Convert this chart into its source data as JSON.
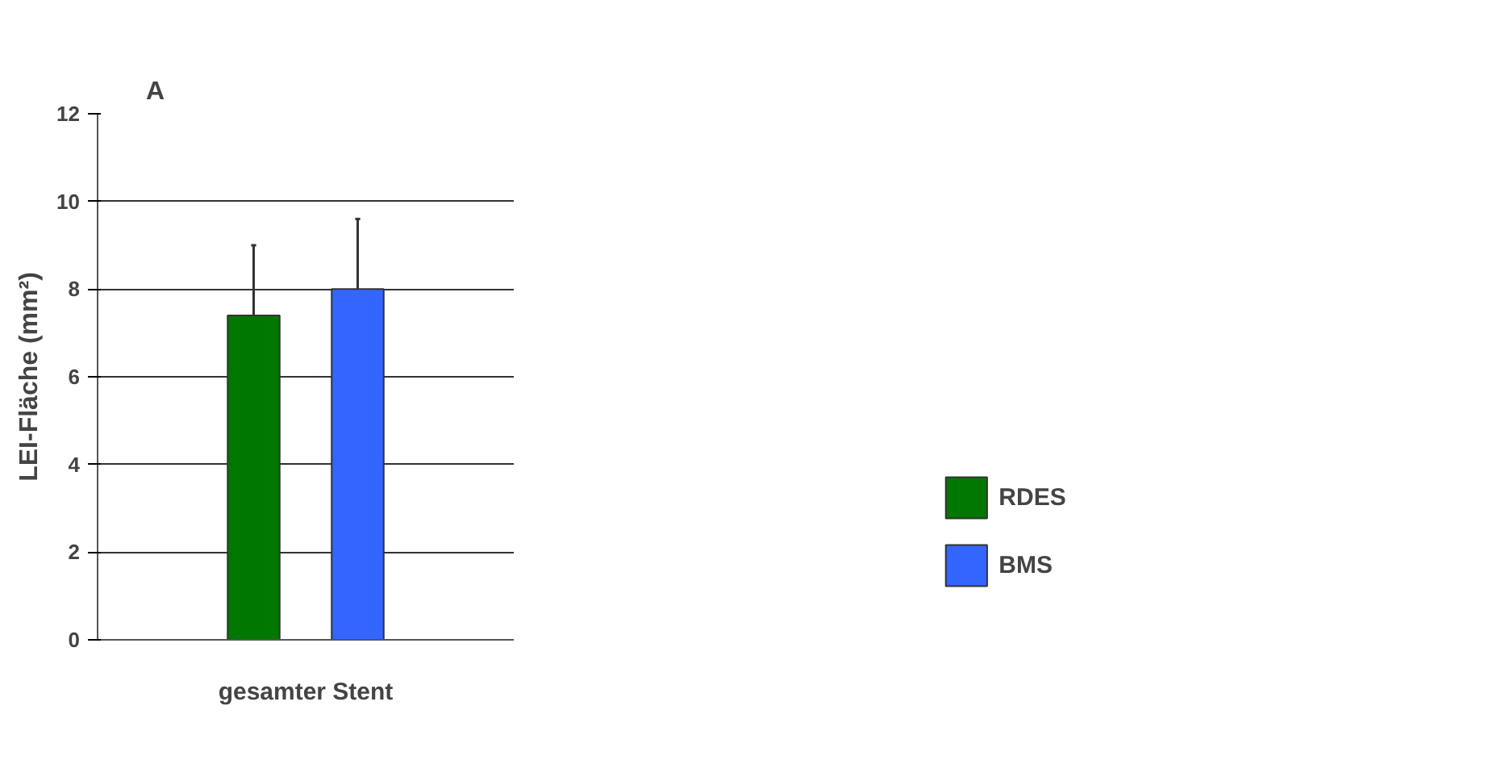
{
  "chart_data": {
    "type": "bar",
    "title": "A",
    "ylabel": "LEI-Fläche (mm²)",
    "categories": [
      "gesamter Stent"
    ],
    "series": [
      {
        "name": "RDES",
        "color": "#007800",
        "values": [
          7.4
        ],
        "errors": [
          [
            7.4,
            9.0
          ]
        ]
      },
      {
        "name": "BMS",
        "color": "#3366ff",
        "values": [
          8.0
        ],
        "errors": [
          [
            8.0,
            9.6
          ]
        ]
      }
    ],
    "ylim": [
      0,
      12
    ],
    "yticks": [
      0,
      2,
      4,
      6,
      8,
      10,
      12
    ],
    "grid": "y",
    "legend": "right"
  }
}
